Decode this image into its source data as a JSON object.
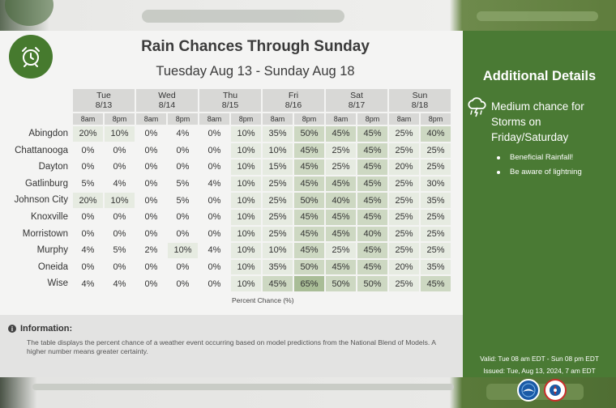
{
  "title": "Rain Chances Through Sunday",
  "subtitle": "Tuesday Aug 13 - Sunday Aug 18",
  "days": [
    {
      "name": "Tue",
      "date": "8/13"
    },
    {
      "name": "Wed",
      "date": "8/14"
    },
    {
      "name": "Thu",
      "date": "8/15"
    },
    {
      "name": "Fri",
      "date": "8/16"
    },
    {
      "name": "Sat",
      "date": "8/17"
    },
    {
      "name": "Sun",
      "date": "8/18"
    }
  ],
  "times": [
    "8am",
    "8pm"
  ],
  "locations": [
    {
      "name": "Abingdon",
      "values": [
        "20%",
        "10%",
        "0%",
        "4%",
        "0%",
        "10%",
        "35%",
        "50%",
        "45%",
        "45%",
        "25%",
        "40%"
      ]
    },
    {
      "name": "Chattanooga",
      "values": [
        "0%",
        "0%",
        "0%",
        "0%",
        "0%",
        "10%",
        "10%",
        "45%",
        "25%",
        "45%",
        "25%",
        "25%"
      ]
    },
    {
      "name": "Dayton",
      "values": [
        "0%",
        "0%",
        "0%",
        "0%",
        "0%",
        "10%",
        "15%",
        "45%",
        "25%",
        "45%",
        "20%",
        "25%"
      ]
    },
    {
      "name": "Gatlinburg",
      "values": [
        "5%",
        "4%",
        "0%",
        "5%",
        "4%",
        "10%",
        "25%",
        "45%",
        "45%",
        "45%",
        "25%",
        "30%"
      ]
    },
    {
      "name": "Johnson City",
      "values": [
        "20%",
        "10%",
        "0%",
        "5%",
        "0%",
        "10%",
        "25%",
        "50%",
        "40%",
        "45%",
        "25%",
        "35%"
      ]
    },
    {
      "name": "Knoxville",
      "values": [
        "0%",
        "0%",
        "0%",
        "0%",
        "0%",
        "10%",
        "25%",
        "45%",
        "45%",
        "45%",
        "25%",
        "25%"
      ]
    },
    {
      "name": "Morristown",
      "values": [
        "0%",
        "0%",
        "0%",
        "0%",
        "0%",
        "10%",
        "25%",
        "45%",
        "45%",
        "40%",
        "25%",
        "25%"
      ]
    },
    {
      "name": "Murphy",
      "values": [
        "4%",
        "5%",
        "2%",
        "10%",
        "4%",
        "10%",
        "10%",
        "45%",
        "25%",
        "45%",
        "25%",
        "25%"
      ]
    },
    {
      "name": "Oneida",
      "values": [
        "0%",
        "0%",
        "0%",
        "0%",
        "0%",
        "10%",
        "35%",
        "50%",
        "45%",
        "45%",
        "20%",
        "35%"
      ]
    },
    {
      "name": "Wise",
      "values": [
        "4%",
        "4%",
        "0%",
        "0%",
        "0%",
        "10%",
        "45%",
        "65%",
        "50%",
        "50%",
        "25%",
        "45%"
      ]
    }
  ],
  "percent_caption": "Percent Chance (%)",
  "info": {
    "title": "Information:",
    "text": "The table displays the percent chance of a weather event occurring based on model predictions from the National Blend of Models. A higher number means greater certainty."
  },
  "sidebar": {
    "title": "Additional Details",
    "headline": "Medium chance for Storms on Friday/Saturday",
    "bullets": [
      "Beneficial Rainfall!",
      "Be aware of lightning"
    ],
    "valid": "Valid: Tue 08 am EDT - Sun 08 pm EDT",
    "issued": "Issued: Tue, Aug 13, 2024, 7 am EDT"
  },
  "colors": {
    "brand_green": "#4a7a34",
    "cell_low": "#f4f4f3",
    "cell_mid": "#e6ebe1",
    "cell_high": "#cdd8c2",
    "cell_max": "#a9bd97"
  }
}
